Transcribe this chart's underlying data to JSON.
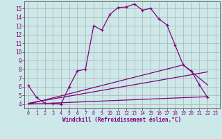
{
  "xlabel": "Windchill (Refroidissement éolien,°C)",
  "bg_color": "#cce8e8",
  "line_color": "#800080",
  "grid_color": "#b0b0b0",
  "ylim": [
    3.5,
    15.8
  ],
  "xlim": [
    -0.5,
    23.5
  ],
  "yticks": [
    4,
    5,
    6,
    7,
    8,
    9,
    10,
    11,
    12,
    13,
    14,
    15
  ],
  "xticks": [
    0,
    1,
    2,
    3,
    4,
    5,
    6,
    7,
    8,
    9,
    10,
    11,
    12,
    13,
    14,
    15,
    16,
    17,
    18,
    19,
    20,
    21,
    22,
    23
  ],
  "curve1_x": [
    0,
    1,
    2,
    3,
    4,
    5,
    6,
    7,
    8,
    9,
    10,
    11,
    12,
    13,
    14,
    15,
    16,
    17,
    18,
    19,
    20,
    21,
    22
  ],
  "curve1_y": [
    6.1,
    4.75,
    4.1,
    4.05,
    4.0,
    6.0,
    7.8,
    8.0,
    13.0,
    12.5,
    14.3,
    15.1,
    15.15,
    15.5,
    14.8,
    15.0,
    13.8,
    13.1,
    10.8,
    8.5,
    7.8,
    6.2,
    4.75
  ],
  "line1_x": [
    0,
    19,
    22
  ],
  "line1_y": [
    4.0,
    8.5,
    6.2
  ],
  "line2_x": [
    0,
    22
  ],
  "line2_y": [
    4.1,
    7.7
  ],
  "line3_x": [
    0,
    22
  ],
  "line3_y": [
    4.0,
    4.85
  ]
}
